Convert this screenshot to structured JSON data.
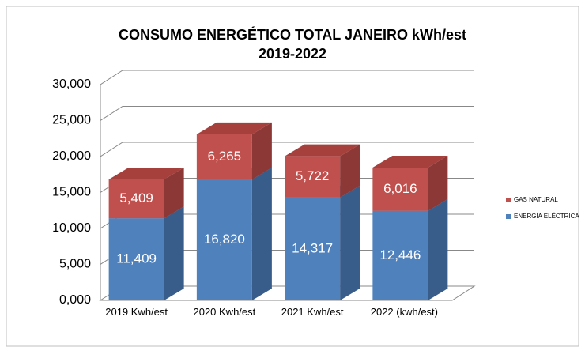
{
  "chart_data": {
    "type": "bar3d_stacked",
    "title": [
      "CONSUMO ENERGÉTICO TOTAL JANEIRO kWh/est",
      "2019-2022"
    ],
    "categories": [
      "2019 Kwh/est",
      "2020 Kwh/est",
      "2021 Kwh/est",
      "2022 (kwh/est)"
    ],
    "series": [
      {
        "name": "ENERGÍA ELÉCTRICA",
        "color": "#4f81bd",
        "side_color": "#385d8a",
        "top_color": "#4a78ae",
        "values": [
          11409,
          16820,
          14317,
          12446
        ],
        "value_labels": [
          "11,409",
          "16,820",
          "14,317",
          "12,446"
        ]
      },
      {
        "name": "GAS NATURAL",
        "color": "#c0504d",
        "side_color": "#8c3836",
        "top_color": "#a6403d",
        "values": [
          5409,
          6265,
          5722,
          6016
        ],
        "value_labels": [
          "5,409",
          "6,265",
          "5,722",
          "6,016"
        ]
      }
    ],
    "ylim": [
      0,
      30000
    ],
    "yticks": [
      {
        "value": 0,
        "label": "0,000"
      },
      {
        "value": 5000,
        "label": "5,000"
      },
      {
        "value": 10000,
        "label": "10,000"
      },
      {
        "value": 15000,
        "label": "15,000"
      },
      {
        "value": 20000,
        "label": "20,000"
      },
      {
        "value": 25000,
        "label": "25,000"
      },
      {
        "value": 30000,
        "label": "30,000"
      }
    ],
    "grid": true,
    "legend": "right"
  }
}
